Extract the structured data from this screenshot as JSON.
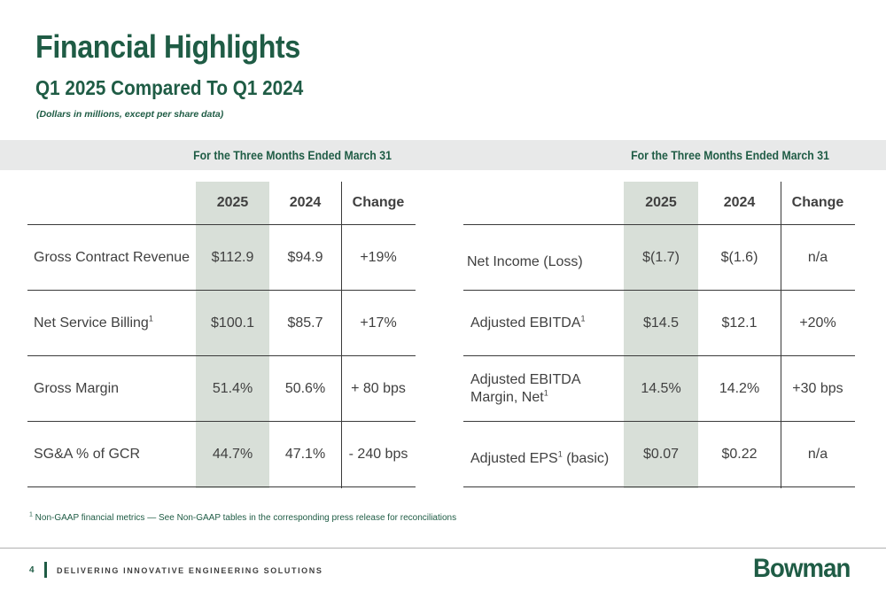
{
  "header": {
    "title": "Financial Highlights",
    "subtitle": "Q1 2025 Compared To Q1 2024",
    "note": "(Dollars in millions, except per share data)"
  },
  "period_label_left": "For the Three Months Ended March 31",
  "period_label_right": "For the Three Months Ended March 31",
  "left_table": {
    "headers": [
      "",
      "2025",
      "2024",
      "Change"
    ],
    "rows": [
      {
        "label": "Gross Contract Revenue",
        "sup": "",
        "v2025": "$112.9",
        "v2024": "$94.9",
        "change": "+19%"
      },
      {
        "label": "Net Service Billing",
        "sup": "1",
        "v2025": "$100.1",
        "v2024": "$85.7",
        "change": "+17%"
      },
      {
        "label": "Gross Margin",
        "sup": "",
        "v2025": "51.4%",
        "v2024": "50.6%",
        "change": "+ 80 bps"
      },
      {
        "label": "SG&A % of GCR",
        "sup": "",
        "v2025": "44.7%",
        "v2024": "47.1%",
        "change": "- 240 bps"
      }
    ]
  },
  "right_table": {
    "headers": [
      "",
      "2025",
      "2024",
      "Change"
    ],
    "rows": [
      {
        "label": "Net Income (Loss)",
        "sup": "",
        "label_after": "",
        "v2025": "$(1.7)",
        "v2024": "$(1.6)",
        "change": "n/a"
      },
      {
        "label": "Adjusted EBITDA",
        "sup": "1",
        "label_after": "",
        "v2025": "$14.5",
        "v2024": "$12.1",
        "change": "+20%"
      },
      {
        "label": "Adjusted EBITDA Margin,  Net",
        "sup": "1",
        "label_after": "",
        "v2025": "14.5%",
        "v2024": "14.2%",
        "change": "+30 bps"
      },
      {
        "label": "Adjusted EPS",
        "sup": "1",
        "label_after": " (basic)",
        "v2025": "$0.07",
        "v2024": "$0.22",
        "change": "n/a"
      }
    ]
  },
  "footnote": {
    "marker": "1",
    "text": " Non-GAAP financial metrics — See Non-GAAP tables in the corresponding press release for reconciliations"
  },
  "footer": {
    "page_number": "4",
    "tagline": "DELIVERING INNOVATIVE ENGINEERING SOLUTIONS",
    "logo_text": "Bowman"
  },
  "colors": {
    "brand_green": "#1f5c45",
    "highlight_column": "#d8dfd8",
    "band_gray": "#e8e9e9"
  }
}
